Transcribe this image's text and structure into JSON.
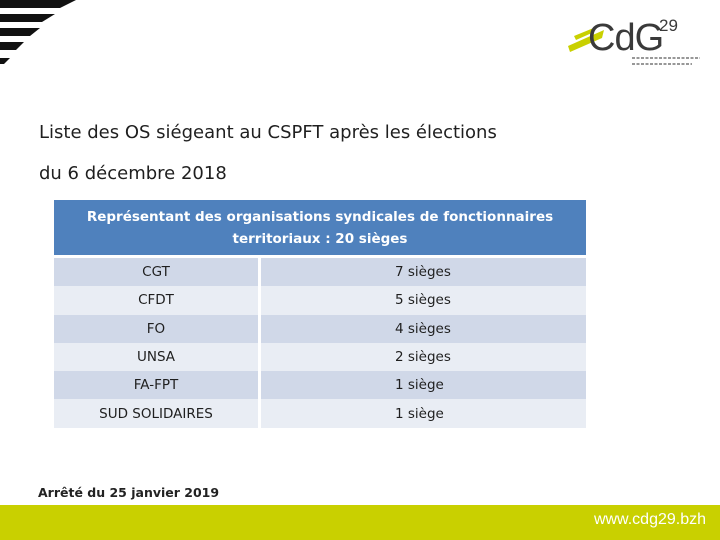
{
  "header": {
    "logo": {
      "text": "CdG",
      "number": "29"
    }
  },
  "title": {
    "line1": "Liste des OS  siégeant au CSPFT après les élections",
    "line2": "du 6 décembre 2018"
  },
  "table": {
    "header_line1": "Représentant des organisations syndicales de fonctionnaires",
    "header_line2": "territoriaux : 20 sièges",
    "rows": [
      {
        "name": "CGT",
        "seats": "7 sièges"
      },
      {
        "name": "CFDT",
        "seats": "5 sièges"
      },
      {
        "name": "FO",
        "seats": "4 sièges"
      },
      {
        "name": "UNSA",
        "seats": "2 sièges"
      },
      {
        "name": "FA-FPT",
        "seats": "1 siège"
      },
      {
        "name": "SUD SOLIDAIRES",
        "seats": "1 siège"
      }
    ]
  },
  "footnote": "Arrêté du 25 janvier 2019",
  "footer": {
    "website": "www.cdg29.bzh"
  },
  "colors": {
    "table_header": "#4f81bd",
    "row_dark": "#d0d8e8",
    "row_light": "#e9edf4",
    "footer_bar": "#c9d000",
    "logo_accent": "#c9d000"
  }
}
